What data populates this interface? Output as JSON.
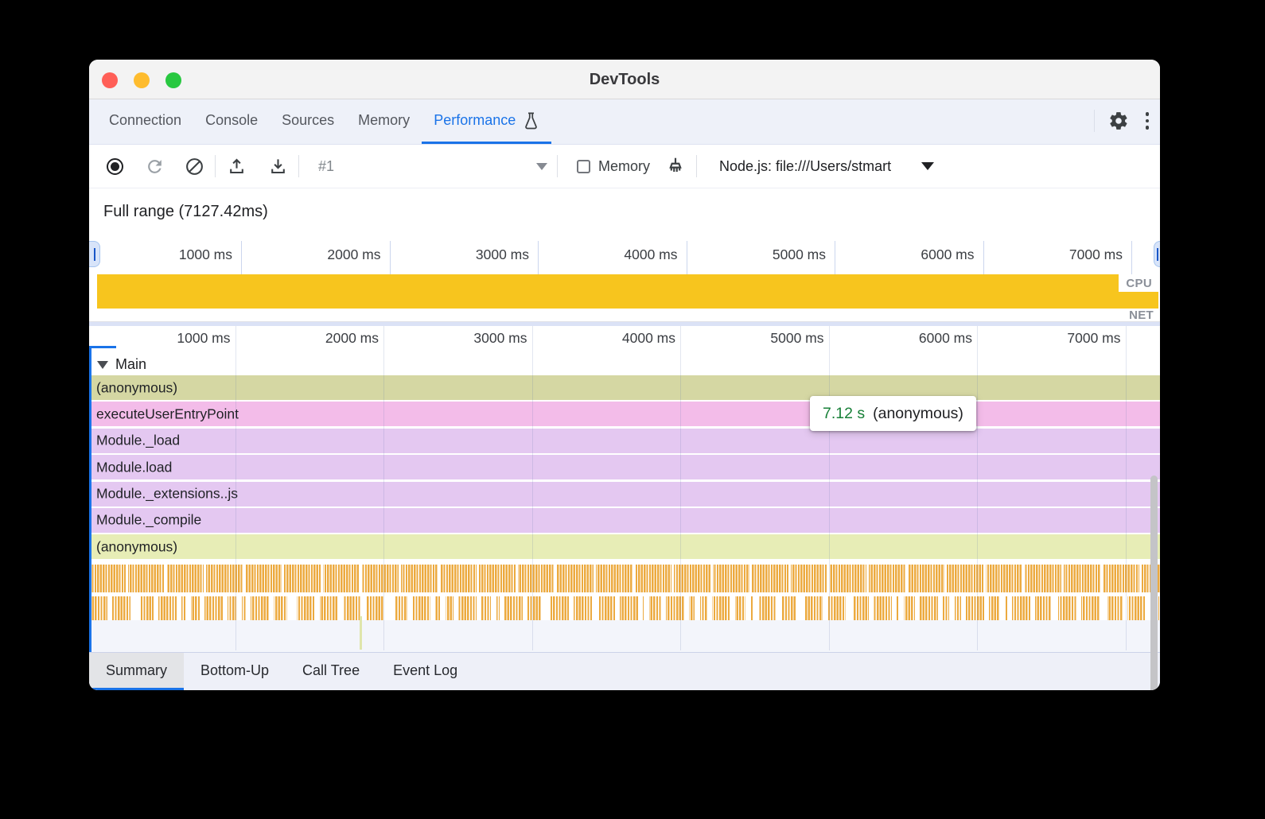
{
  "window": {
    "title": "DevTools"
  },
  "top_tabs": {
    "items": [
      "Connection",
      "Console",
      "Sources",
      "Memory",
      "Performance"
    ],
    "active": "Performance"
  },
  "toolbar": {
    "session_select": "#1",
    "memory_label": "Memory",
    "target_select_label": "Node.js: file:///Users/stmart"
  },
  "overview": {
    "full_range_label": "Full range (7127.42ms)",
    "ticks": [
      "1000 ms",
      "2000 ms",
      "3000 ms",
      "4000 ms",
      "5000 ms",
      "6000 ms",
      "7000 ms"
    ],
    "cpu_label": "CPU",
    "net_label": "NET"
  },
  "flame": {
    "ticks": [
      "1000 ms",
      "2000 ms",
      "3000 ms",
      "4000 ms",
      "5000 ms",
      "6000 ms",
      "7000 ms"
    ],
    "group_label": "Main",
    "rows": [
      {
        "label": "(anonymous)",
        "color": "#d5d7a3"
      },
      {
        "label": "executeUserEntryPoint",
        "color": "#f3bce9"
      },
      {
        "label": "Module._load",
        "color": "#e4c8f1"
      },
      {
        "label": "Module.load",
        "color": "#e4c8f1"
      },
      {
        "label": "Module._extensions..js",
        "color": "#e4c8f1"
      },
      {
        "label": "Module._compile",
        "color": "#e4c8f1"
      },
      {
        "label": "(anonymous)",
        "color": "#e7edb6"
      }
    ],
    "tooltip": {
      "duration": "7.12 s",
      "label": "(anonymous)"
    }
  },
  "bottom_tabs": {
    "items": [
      "Summary",
      "Bottom-Up",
      "Call Tree",
      "Event Log"
    ],
    "active": "Summary"
  },
  "colors": {
    "accent": "#1a73e8",
    "cpu_band": "#f7c51e",
    "stripe": "#ecaa3f",
    "tooltip_duration_green": "#188038",
    "traffic_red": "#ff5f57",
    "traffic_yellow": "#febc2e",
    "traffic_green": "#28c840"
  },
  "chart_data": {
    "type": "flame",
    "title": "Performance trace",
    "full_range_ms": 7127.42,
    "ruler_ticks_ms": [
      1000,
      2000,
      3000,
      4000,
      5000,
      6000,
      7000
    ],
    "tracks": [
      "CPU",
      "NET"
    ],
    "cpu_track_busy_fraction": 1.0,
    "main_stack_top_to_bottom": [
      "(anonymous)",
      "executeUserEntryPoint",
      "Module._load",
      "Module.load",
      "Module._extensions..js",
      "Module._compile",
      "(anonymous)"
    ],
    "selected_event": {
      "name": "(anonymous)",
      "duration_label": "7.12 s"
    }
  }
}
